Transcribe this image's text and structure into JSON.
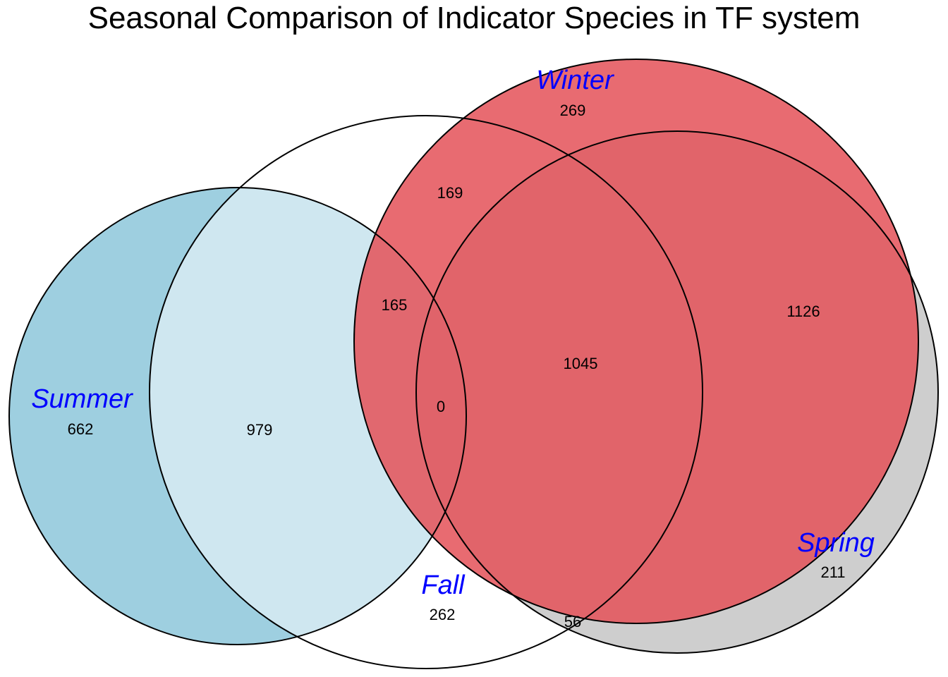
{
  "title": "Seasonal Comparison of Indicator Species in TF system",
  "label_color": "#0000FF",
  "sets": [
    {
      "key": "summer",
      "label": "Summer",
      "fill": "#9ECFE0",
      "opacity": 1.0
    },
    {
      "key": "fall",
      "label": "Fall",
      "fill": "#FFFFFF",
      "opacity": 0.5
    },
    {
      "key": "spring",
      "label": "Spring",
      "fill": "#C6C6C6",
      "opacity": 0.85
    },
    {
      "key": "winter",
      "label": "Winter",
      "fill": "#E45158",
      "opacity": 0.85
    }
  ],
  "regions": [
    {
      "sets": [
        "summer"
      ],
      "count": "662"
    },
    {
      "sets": [
        "summer",
        "fall"
      ],
      "count": "979"
    },
    {
      "sets": [
        "summer",
        "fall",
        "winter"
      ],
      "count": "165"
    },
    {
      "sets": [
        "summer",
        "fall",
        "winter",
        "spring"
      ],
      "count": "0"
    },
    {
      "sets": [
        "fall",
        "winter"
      ],
      "count": "169"
    },
    {
      "sets": [
        "fall",
        "winter",
        "spring"
      ],
      "count": "1045"
    },
    {
      "sets": [
        "winter"
      ],
      "count": "269"
    },
    {
      "sets": [
        "winter",
        "spring"
      ],
      "count": "1126"
    },
    {
      "sets": [
        "spring"
      ],
      "count": "211"
    },
    {
      "sets": [
        "fall"
      ],
      "count": "262"
    },
    {
      "sets": [
        "fall",
        "spring"
      ],
      "count": "56"
    }
  ]
}
